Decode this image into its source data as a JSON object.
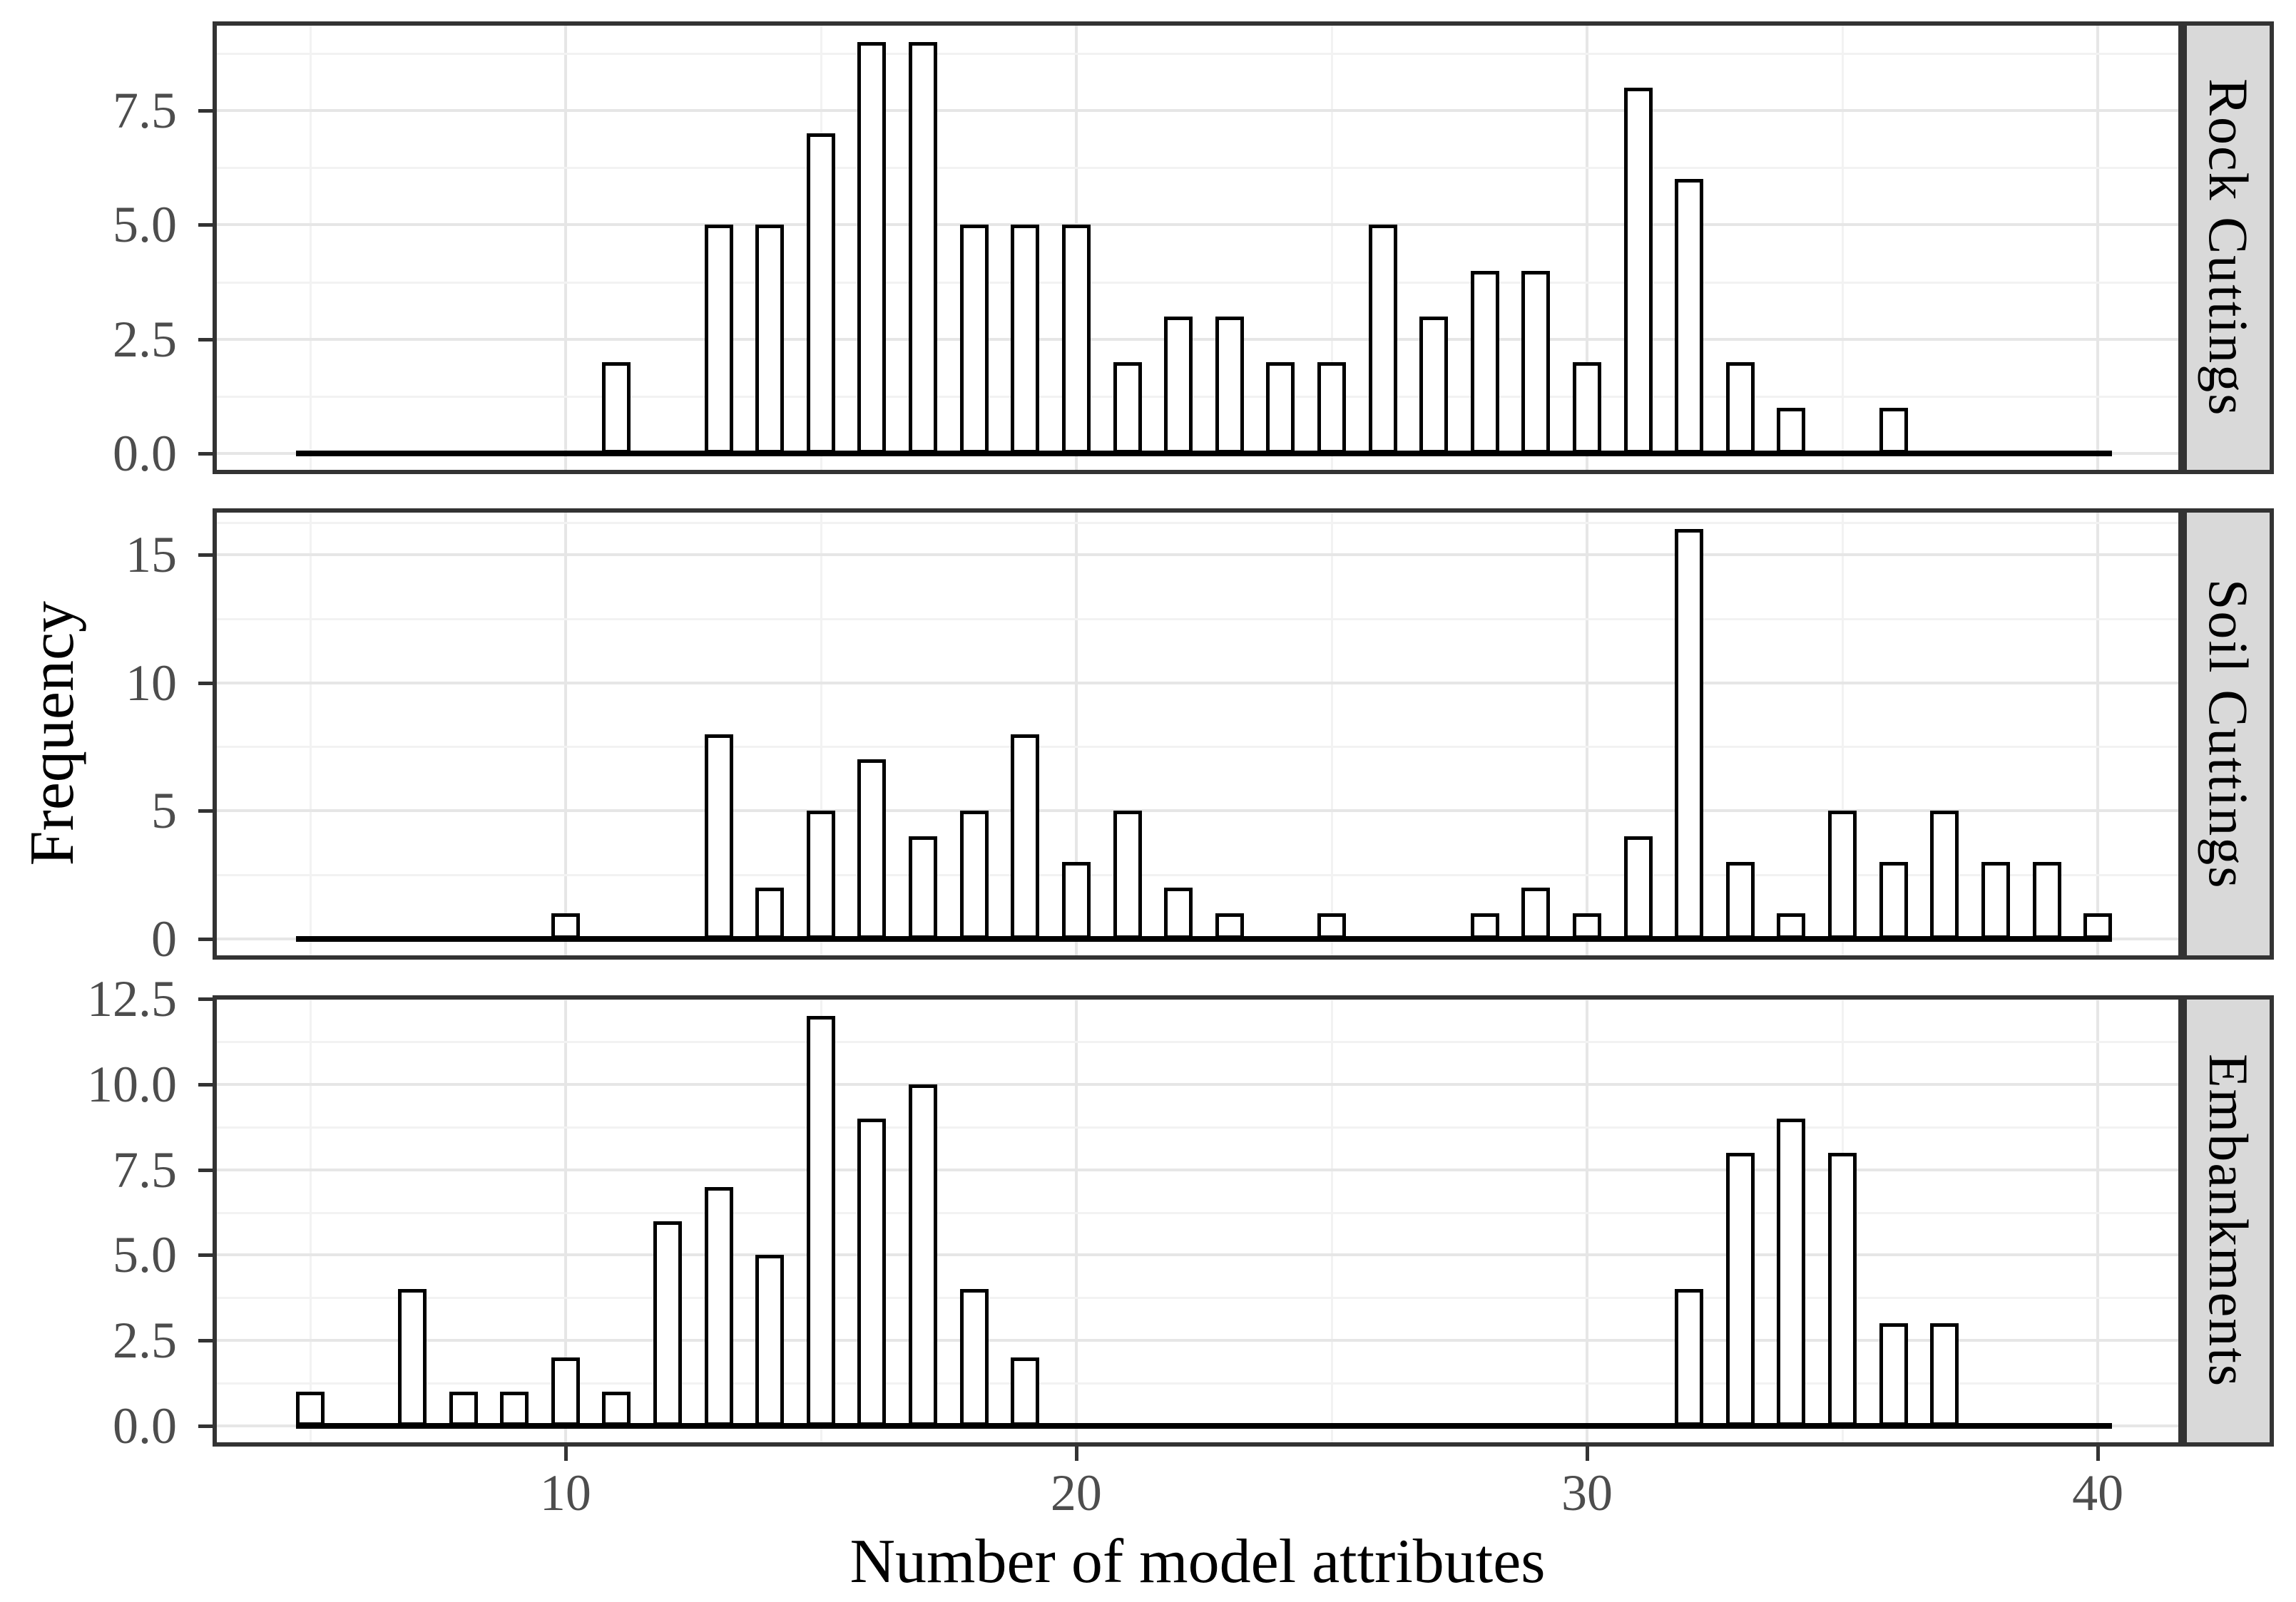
{
  "chart_data": {
    "type": "bar",
    "subtype": "faceted-histogram",
    "title": "",
    "xlabel": "Number of model attributes",
    "ylabel": "Frequency",
    "legend": "none",
    "grid": true,
    "facet_strip_position": "right",
    "xlim": [
      3.09,
      41.66
    ],
    "x_major_ticks": [
      10,
      20,
      30,
      40
    ],
    "x_minor_gridlines": [
      5,
      15,
      25,
      35
    ],
    "bar_width_units": 0.56,
    "zero_line_span": [
      4.72,
      40.28
    ],
    "panels": [
      {
        "label": "Rock Cuttings",
        "ylim": [
          -0.45,
          9.45
        ],
        "y_major_ticks": [
          0,
          2.5,
          5,
          7.5
        ],
        "y_tick_labels": [
          "0.0",
          "2.5",
          "5.0",
          "7.5"
        ],
        "y_minor_gridlines": [
          1.25,
          3.75,
          6.25,
          8.75
        ],
        "x": [
          11,
          13,
          14,
          15,
          16,
          17,
          18,
          19,
          20,
          21,
          22,
          23,
          24,
          25,
          26,
          27,
          28,
          29,
          30,
          31,
          32,
          33,
          34,
          36
        ],
        "values": [
          2,
          5,
          5,
          7,
          9,
          9,
          5,
          5,
          5,
          2,
          3,
          3,
          2,
          2,
          5,
          3,
          4,
          4,
          2,
          8,
          6,
          2,
          1,
          1
        ]
      },
      {
        "label": "Soil Cuttings",
        "ylim": [
          -0.8,
          16.8
        ],
        "y_major_ticks": [
          0,
          5,
          10,
          15
        ],
        "y_tick_labels": [
          "0",
          "5",
          "10",
          "15"
        ],
        "y_minor_gridlines": [
          2.5,
          7.5,
          12.5,
          16.25
        ],
        "x": [
          10,
          13,
          14,
          15,
          16,
          17,
          18,
          19,
          20,
          21,
          22,
          23,
          25,
          28,
          29,
          30,
          31,
          32,
          33,
          34,
          35,
          36,
          37,
          38,
          39,
          40
        ],
        "values": [
          1,
          8,
          2,
          5,
          7,
          4,
          5,
          8,
          3,
          5,
          2,
          1,
          1,
          1,
          2,
          1,
          4,
          16,
          3,
          1,
          5,
          3,
          5,
          3,
          3,
          1
        ]
      },
      {
        "label": "Embankments",
        "ylim": [
          -0.6,
          12.6
        ],
        "y_major_ticks": [
          0,
          2.5,
          5,
          7.5,
          10,
          12.5
        ],
        "y_tick_labels": [
          "0.0",
          "2.5",
          "5.0",
          "7.5",
          "10.0",
          "12.5"
        ],
        "y_minor_gridlines": [
          1.25,
          3.75,
          6.25,
          8.75,
          11.25
        ],
        "x": [
          5,
          7,
          8,
          9,
          10,
          11,
          12,
          13,
          14,
          15,
          16,
          17,
          18,
          19,
          32,
          33,
          34,
          35,
          36,
          37
        ],
        "values": [
          1,
          4,
          1,
          1,
          2,
          1,
          6,
          7,
          5,
          12,
          9,
          10,
          4,
          2,
          4,
          8,
          9,
          8,
          3,
          3
        ]
      }
    ]
  },
  "style": {
    "panel_border_color": "#333333",
    "grid_major_color": "#e6e6e6",
    "grid_minor_color": "#f2f2f2",
    "bar_fill": "#ffffff",
    "bar_stroke": "#000000",
    "strip_fill": "#d9d9d9",
    "tick_label_color": "#4d4d4d",
    "axis_title_color": "#000000"
  }
}
